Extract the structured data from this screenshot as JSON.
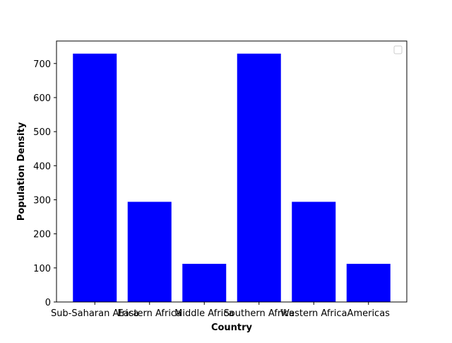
{
  "chart_data": {
    "type": "bar",
    "categories": [
      "Sub-Saharan Africa",
      "Eastern Africa",
      "Middle Africa",
      "Southern Africa",
      "Western Africa",
      "Americas"
    ],
    "values": [
      729,
      294,
      112,
      729,
      294,
      112
    ],
    "xlabel": "Country",
    "ylabel": "Population Density",
    "ylim": [
      0,
      766
    ],
    "yticks": [
      0,
      100,
      200,
      300,
      400,
      500,
      600,
      700
    ],
    "bar_color": "#0000ff",
    "grid": false,
    "legend": {
      "placement": "top-right",
      "entries": []
    }
  }
}
